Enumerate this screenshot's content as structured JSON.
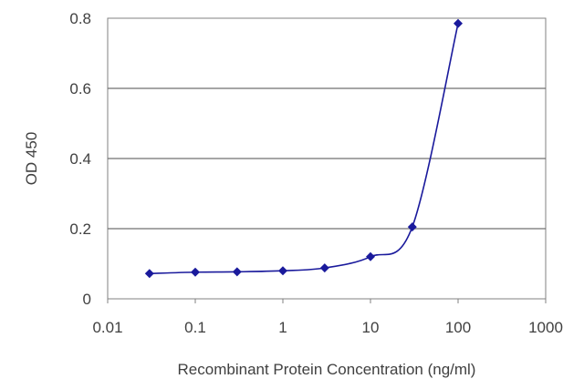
{
  "chart_data": {
    "type": "line",
    "title": "",
    "xlabel": "Recombinant Protein Concentration (ng/ml)",
    "ylabel": "OD 450",
    "x_scale": "log",
    "xlim": [
      0.01,
      1000
    ],
    "ylim": [
      0,
      0.8
    ],
    "x_ticks": [
      0.01,
      0.1,
      1,
      10,
      100,
      1000
    ],
    "x_tick_labels": [
      "0.01",
      "0.1",
      "1",
      "10",
      "100",
      "1000"
    ],
    "y_ticks": [
      0,
      0.2,
      0.4,
      0.6,
      0.8
    ],
    "y_tick_labels": [
      "0",
      "0.2",
      "0.4",
      "0.6",
      "0.8"
    ],
    "grid": "horizontal",
    "legend": "none",
    "series": [
      {
        "x": [
          0.03,
          0.1,
          0.3,
          1,
          3,
          10,
          30,
          100
        ],
        "y": [
          0.072,
          0.076,
          0.077,
          0.08,
          0.088,
          0.12,
          0.205,
          0.785
        ],
        "marker": "diamond",
        "color": "#1a1a9c"
      }
    ]
  }
}
